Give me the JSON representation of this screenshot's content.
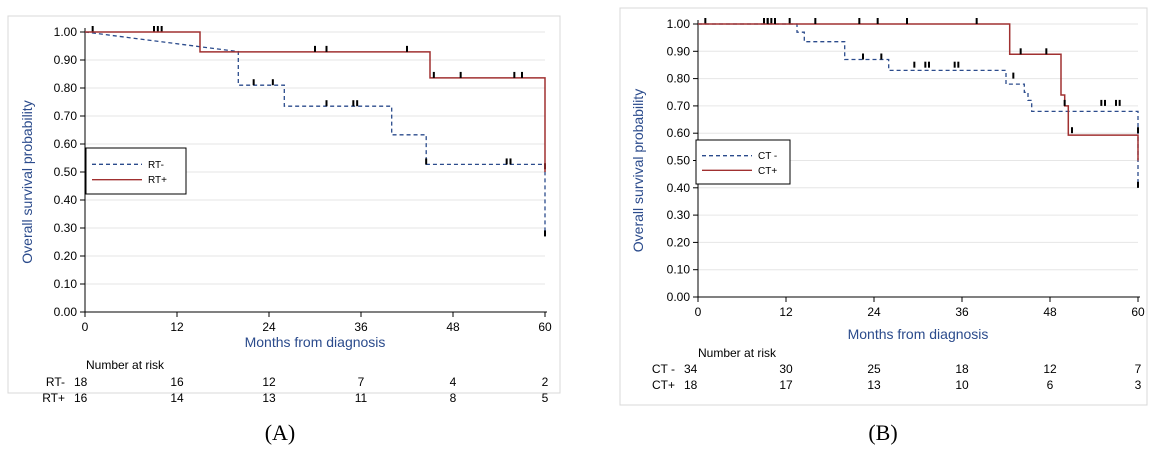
{
  "chart_data": [
    {
      "type": "line",
      "panel_label": "(A)",
      "xlabel": "Months from diagnosis",
      "ylabel": "Overall survival probability",
      "xlim": [
        0,
        60
      ],
      "ylim": [
        0,
        1
      ],
      "x_ticks": [
        "0",
        "12",
        "24",
        "36",
        "48",
        "60"
      ],
      "y_ticks": [
        "0.00",
        "0.10",
        "0.20",
        "0.30",
        "0.40",
        "0.50",
        "0.60",
        "0.70",
        "0.80",
        "0.90",
        "1.00"
      ],
      "colors": {
        "series_1": "#2b4b8c",
        "series_2": "#a03030"
      },
      "legend_position": "center-left",
      "series": [
        {
          "name": "RT-",
          "style": "dashed",
          "steps": [
            [
              0,
              1.0
            ],
            [
              20,
              0.93
            ],
            [
              20,
              0.81
            ],
            [
              26,
              0.81
            ],
            [
              26,
              0.735
            ],
            [
              40,
              0.735
            ],
            [
              40,
              0.633
            ],
            [
              44.5,
              0.633
            ],
            [
              44.5,
              0.527
            ],
            [
              60,
              0.527
            ],
            [
              60,
              0.27
            ]
          ],
          "censored": [
            [
              1,
              1.0
            ],
            [
              9,
              1.0
            ],
            [
              9.5,
              1.0
            ],
            [
              10,
              1.0
            ],
            [
              22,
              0.81
            ],
            [
              24.5,
              0.81
            ],
            [
              31.5,
              0.735
            ],
            [
              35,
              0.735
            ],
            [
              35.5,
              0.735
            ],
            [
              44.5,
              0.527
            ],
            [
              55,
              0.527
            ],
            [
              55.5,
              0.527
            ],
            [
              60,
              0.27
            ],
            [
              60,
              0.51
            ]
          ]
        },
        {
          "name": "RT+",
          "style": "solid",
          "steps": [
            [
              0,
              1.0
            ],
            [
              15,
              1.0
            ],
            [
              15,
              0.929
            ],
            [
              45,
              0.929
            ],
            [
              45,
              0.836
            ],
            [
              60,
              0.836
            ],
            [
              60,
              0.5
            ]
          ],
          "censored": [
            [
              30,
              0.929
            ],
            [
              31.5,
              0.929
            ],
            [
              42,
              0.929
            ],
            [
              45.5,
              0.836
            ],
            [
              49,
              0.836
            ],
            [
              56,
              0.836
            ],
            [
              57,
              0.836
            ]
          ]
        }
      ],
      "risk_table": {
        "title": "Number at risk",
        "rows": [
          {
            "label": "RT-",
            "values": [
              "18",
              "16",
              "12",
              "7",
              "4",
              "2"
            ]
          },
          {
            "label": "RT+",
            "values": [
              "16",
              "14",
              "13",
              "11",
              "8",
              "5"
            ]
          }
        ]
      }
    },
    {
      "type": "line",
      "panel_label": "(B)",
      "xlabel": "Months from diagnosis",
      "ylabel": "Overall survival probability",
      "xlim": [
        0,
        60
      ],
      "ylim": [
        0,
        1
      ],
      "x_ticks": [
        "0",
        "12",
        "24",
        "36",
        "48",
        "60"
      ],
      "y_ticks": [
        "0.00",
        "0.10",
        "0.20",
        "0.30",
        "0.40",
        "0.50",
        "0.60",
        "0.70",
        "0.80",
        "0.90",
        "1.00"
      ],
      "colors": {
        "series_1": "#2b4b8c",
        "series_2": "#a03030"
      },
      "legend_position": "center-left",
      "series": [
        {
          "name": "CT -",
          "style": "dashed",
          "steps": [
            [
              0,
              1.0
            ],
            [
              13.5,
              1.0
            ],
            [
              13.5,
              0.97
            ],
            [
              14.5,
              0.97
            ],
            [
              14.5,
              0.935
            ],
            [
              20,
              0.935
            ],
            [
              20,
              0.87
            ],
            [
              26,
              0.87
            ],
            [
              26,
              0.83
            ],
            [
              42,
              0.83
            ],
            [
              42,
              0.78
            ],
            [
              44.5,
              0.78
            ],
            [
              44.5,
              0.75
            ],
            [
              45,
              0.75
            ],
            [
              45,
              0.72
            ],
            [
              45.5,
              0.72
            ],
            [
              45.5,
              0.68
            ],
            [
              60,
              0.68
            ],
            [
              60,
              0.4
            ]
          ],
          "censored": [
            [
              1,
              1.0
            ],
            [
              9,
              1.0
            ],
            [
              9.5,
              1.0
            ],
            [
              10,
              1.0
            ],
            [
              12.5,
              1.0
            ],
            [
              22.5,
              0.87
            ],
            [
              25,
              0.87
            ],
            [
              29.5,
              0.84
            ],
            [
              31,
              0.84
            ],
            [
              31.5,
              0.84
            ],
            [
              35,
              0.84
            ],
            [
              35.5,
              0.84
            ],
            [
              43,
              0.8
            ],
            [
              55,
              0.7
            ],
            [
              55.5,
              0.7
            ],
            [
              57,
              0.7
            ],
            [
              57.5,
              0.7
            ],
            [
              60,
              0.4
            ],
            [
              60,
              0.6
            ]
          ]
        },
        {
          "name": "CT+",
          "style": "solid",
          "steps": [
            [
              0,
              1.0
            ],
            [
              42.5,
              1.0
            ],
            [
              42.5,
              0.889
            ],
            [
              49.5,
              0.889
            ],
            [
              49.5,
              0.74
            ],
            [
              50,
              0.74
            ],
            [
              50,
              0.7
            ],
            [
              50.5,
              0.7
            ],
            [
              50.5,
              0.593
            ],
            [
              60,
              0.593
            ],
            [
              60,
              0.5
            ]
          ],
          "censored": [
            [
              9.5,
              1.0
            ],
            [
              10.5,
              1.0
            ],
            [
              16,
              1.0
            ],
            [
              22,
              1.0
            ],
            [
              24.5,
              1.0
            ],
            [
              28.5,
              1.0
            ],
            [
              38,
              1.0
            ],
            [
              44,
              0.889
            ],
            [
              47.5,
              0.889
            ],
            [
              50,
              0.7
            ],
            [
              51,
              0.6
            ]
          ]
        }
      ],
      "risk_table": {
        "title": "Number at risk",
        "rows": [
          {
            "label": "CT -",
            "values": [
              "34",
              "30",
              "25",
              "18",
              "12",
              "7"
            ]
          },
          {
            "label": "CT+",
            "values": [
              "18",
              "17",
              "13",
              "10",
              "6",
              "3"
            ]
          }
        ]
      }
    }
  ]
}
